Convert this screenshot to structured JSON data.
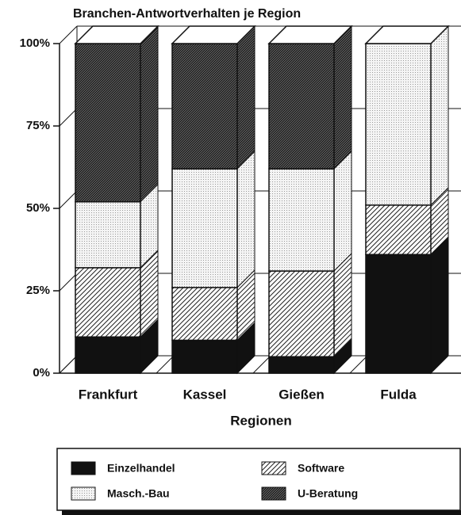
{
  "chart_data": {
    "type": "stacked-bar-3d",
    "title": "Branchen-Antwortverhalten je Region",
    "x_label": "Regionen",
    "categories": [
      "Frankfurt",
      "Kassel",
      "Gießen",
      "Fulda"
    ],
    "series": [
      {
        "name": "Einzelhandel",
        "color": "#111111",
        "pattern": "solid",
        "values": [
          11,
          10,
          5,
          36
        ]
      },
      {
        "name": "Software",
        "color": "#111111",
        "pattern": "hatch",
        "values": [
          21,
          16,
          26,
          15
        ]
      },
      {
        "name": "Masch.-Bau",
        "color": "#999999",
        "pattern": "dots",
        "values": [
          20,
          36,
          31,
          49
        ]
      },
      {
        "name": "U-Beratung",
        "color": "#222222",
        "pattern": "dense-hatch",
        "values": [
          48,
          38,
          38,
          0
        ]
      }
    ],
    "ylim": [
      0,
      100
    ],
    "yticks": [
      {
        "value": 0,
        "label": "0%"
      },
      {
        "value": 25,
        "label": "25%"
      },
      {
        "value": 50,
        "label": "50%"
      },
      {
        "value": 75,
        "label": "75%"
      },
      {
        "value": 100,
        "label": "100%"
      }
    ],
    "grid": true,
    "legend": "bottom"
  }
}
